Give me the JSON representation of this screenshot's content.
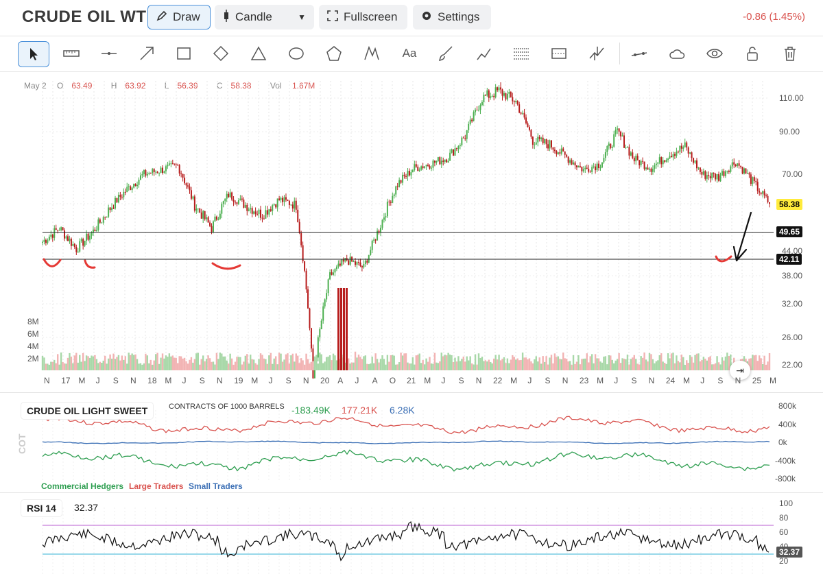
{
  "header": {
    "title": "CRUDE OIL WTI",
    "draw_label": "Draw",
    "candle_label": "Candle",
    "fullscreen_label": "Fullscreen",
    "settings_label": "Settings",
    "change": "-0.86 (1.45%)"
  },
  "toolbar": {
    "tools": [
      "cursor-icon",
      "ruler-icon",
      "line-segment-icon",
      "arrow-icon",
      "rectangle-icon",
      "diamond-icon",
      "triangle-icon",
      "ellipse-icon",
      "pentagon-icon",
      "path-icon",
      "text-icon",
      "brush-icon",
      "trend-annotation-icon",
      "fib-retracement-icon",
      "range-icon",
      "pitchfork-icon",
      "line-tool-icon",
      "cloud-icon",
      "eye-icon",
      "lock-icon",
      "trash-icon"
    ],
    "text_tool_label": "Aa"
  },
  "ohlc": {
    "date": "May 2",
    "open_label": "O",
    "open": "63.49",
    "high_label": "H",
    "high": "63.92",
    "low_label": "L",
    "low": "56.39",
    "close_label": "C",
    "close": "58.38",
    "vol_label": "Vol",
    "vol": "1.67M"
  },
  "price_axis": [
    "110.00",
    "90.00",
    "70.00",
    "44.00",
    "38.00",
    "32.00",
    "26.00",
    "22.00"
  ],
  "price_badges": {
    "last": "58.38",
    "line1": "49.65",
    "line2": "42.11"
  },
  "volume_axis": [
    "8M",
    "6M",
    "4M",
    "2M"
  ],
  "date_axis": [
    "N",
    "17",
    "M",
    "J",
    "S",
    "N",
    "18",
    "M",
    "J",
    "S",
    "N",
    "19",
    "M",
    "J",
    "S",
    "N",
    "20",
    "A",
    "J",
    "A",
    "O",
    "21",
    "M",
    "J",
    "S",
    "N",
    "22",
    "M",
    "J",
    "S",
    "N",
    "23",
    "M",
    "J",
    "S",
    "N",
    "24",
    "M",
    "J",
    "S",
    "N",
    "25",
    "M"
  ],
  "cot": {
    "title": "CRUDE OIL LIGHT SWEET",
    "subtitle": "CONTRACTS OF 1000 BARRELS",
    "commercial_value": "-183.49K",
    "large_value": "177.21K",
    "small_value": "6.28K",
    "side_label": "COT",
    "axis": [
      "800k",
      "400k",
      "0k",
      "-400k",
      "-800k"
    ],
    "legend": [
      "Commercial Hedgers",
      "Large Traders",
      "Small Traders"
    ]
  },
  "rsi": {
    "label": "RSI 14",
    "value": "32.37",
    "axis": [
      "100",
      "80",
      "60",
      "40",
      "20"
    ],
    "badge": "32.37"
  },
  "colors": {
    "up": "#4caf50",
    "down": "#b71c1c",
    "commercial": "#2e9e50",
    "large": "#d9534f",
    "small": "#3b6fb5",
    "rsi_upper": "#c77ddb",
    "rsi_lower": "#5bc0de",
    "badge_last": "#ffeb3b",
    "badge_line": "#111111"
  },
  "chart_data": {
    "type": "candlestick",
    "title": "CRUDE OIL WTI",
    "x": [
      "2016-11",
      "2017-03",
      "2017-06",
      "2017-09",
      "2017-11",
      "2018-01",
      "2018-05",
      "2018-07",
      "2018-09",
      "2018-11",
      "2019-01",
      "2019-05",
      "2019-07",
      "2019-09",
      "2019-11",
      "2020-01",
      "2020-04",
      "2020-06",
      "2020-08",
      "2020-10",
      "2021-01",
      "2021-05",
      "2021-07",
      "2021-09",
      "2021-11",
      "2022-01",
      "2022-03",
      "2022-05",
      "2022-06",
      "2022-09",
      "2022-11",
      "2023-01",
      "2023-05",
      "2023-07",
      "2023-09",
      "2023-11",
      "2024-01",
      "2024-05",
      "2024-07",
      "2024-09",
      "2024-11",
      "2025-01",
      "2025-03",
      "2025-05"
    ],
    "close": [
      47,
      51,
      45,
      50,
      57,
      64,
      70,
      72,
      74,
      58,
      51,
      62,
      58,
      55,
      60,
      58,
      20,
      38,
      42,
      40,
      52,
      66,
      73,
      75,
      78,
      88,
      110,
      114,
      108,
      86,
      84,
      78,
      72,
      75,
      90,
      77,
      73,
      79,
      83,
      70,
      69,
      76,
      67,
      58.38
    ],
    "ylim": [
      20,
      120
    ],
    "ylabel": "",
    "horizontal_lines": [
      49.65,
      42.11
    ],
    "rsi_last": 32.37
  }
}
